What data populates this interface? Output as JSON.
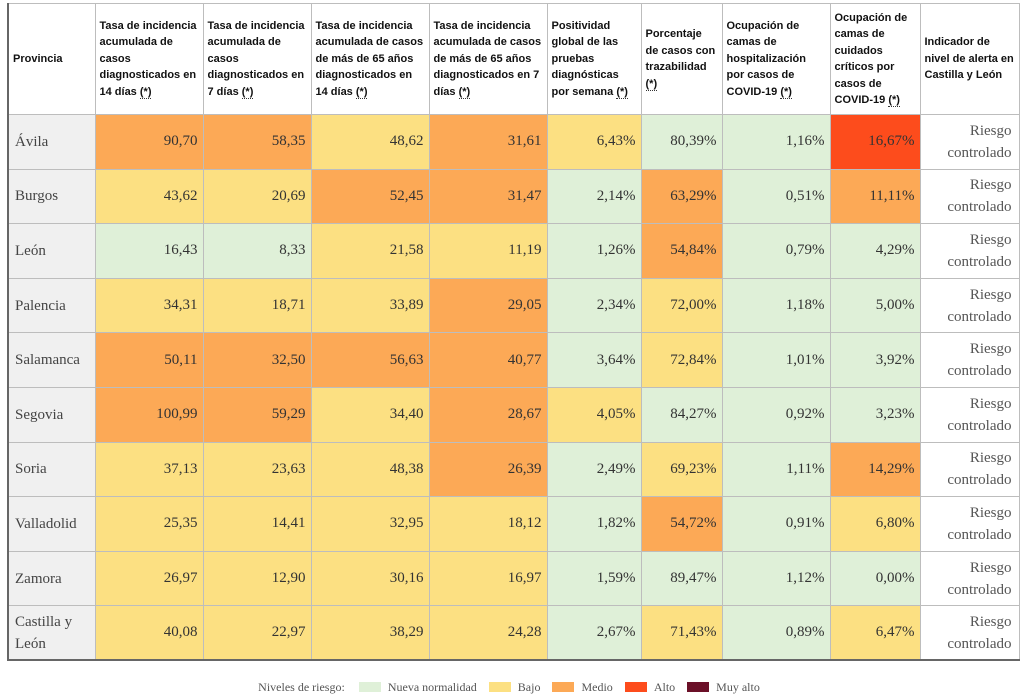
{
  "colors": {
    "nueva": "#dff0d8",
    "bajo": "#fce082",
    "medio": "#fca956",
    "alto": "#fd4c1c",
    "muyalto": "#6b1028"
  },
  "header": {
    "provincia": "Provincia",
    "col1": "Tasa de incidencia acumulada de casos diagnosticados en 14 días",
    "col2": "Tasa de incidencia acumulada de casos diagnosticados en 7 días",
    "col3": "Tasa de incidencia acumulada de casos de más de 65 años diagnosticados en 14 días",
    "col4": "Tasa de incidencia acumulada de casos de más de 65 años diagnosticados en 7 días",
    "col5": "Positividad global de las pruebas diagnósticas por semana",
    "col6": "Porcentaje de casos con trazabilidad",
    "col7": "Ocupación de camas de hospitalización por casos de COVID-19",
    "col8": "Ocupación de camas de cuidados críticos por casos de COVID-19",
    "col9": "Indicador de nivel de alerta en Castilla y León",
    "star": "(*)"
  },
  "rows": [
    {
      "provincia": "Ávila",
      "c1": "90,70",
      "c2": "58,35",
      "c3": "48,62",
      "c4": "31,61",
      "c5": "6,43%",
      "c6": "80,39%",
      "c7": "1,16%",
      "c8": "16,67%",
      "alerta": "Riesgo controlado",
      "lv": [
        "medio",
        "medio",
        "bajo",
        "medio",
        "bajo",
        "nueva",
        "nueva",
        "alto"
      ]
    },
    {
      "provincia": "Burgos",
      "c1": "43,62",
      "c2": "20,69",
      "c3": "52,45",
      "c4": "31,47",
      "c5": "2,14%",
      "c6": "63,29%",
      "c7": "0,51%",
      "c8": "11,11%",
      "alerta": "Riesgo controlado",
      "lv": [
        "bajo",
        "bajo",
        "medio",
        "medio",
        "nueva",
        "medio",
        "nueva",
        "medio"
      ]
    },
    {
      "provincia": "León",
      "c1": "16,43",
      "c2": "8,33",
      "c3": "21,58",
      "c4": "11,19",
      "c5": "1,26%",
      "c6": "54,84%",
      "c7": "0,79%",
      "c8": "4,29%",
      "alerta": "Riesgo controlado",
      "lv": [
        "nueva",
        "nueva",
        "bajo",
        "bajo",
        "nueva",
        "medio",
        "nueva",
        "nueva"
      ]
    },
    {
      "provincia": "Palencia",
      "c1": "34,31",
      "c2": "18,71",
      "c3": "33,89",
      "c4": "29,05",
      "c5": "2,34%",
      "c6": "72,00%",
      "c7": "1,18%",
      "c8": "5,00%",
      "alerta": "Riesgo controlado",
      "lv": [
        "bajo",
        "bajo",
        "bajo",
        "medio",
        "nueva",
        "bajo",
        "nueva",
        "nueva"
      ]
    },
    {
      "provincia": "Salamanca",
      "c1": "50,11",
      "c2": "32,50",
      "c3": "56,63",
      "c4": "40,77",
      "c5": "3,64%",
      "c6": "72,84%",
      "c7": "1,01%",
      "c8": "3,92%",
      "alerta": "Riesgo controlado",
      "lv": [
        "medio",
        "medio",
        "medio",
        "medio",
        "nueva",
        "bajo",
        "nueva",
        "nueva"
      ]
    },
    {
      "provincia": "Segovia",
      "c1": "100,99",
      "c2": "59,29",
      "c3": "34,40",
      "c4": "28,67",
      "c5": "4,05%",
      "c6": "84,27%",
      "c7": "0,92%",
      "c8": "3,23%",
      "alerta": "Riesgo controlado",
      "lv": [
        "medio",
        "medio",
        "bajo",
        "medio",
        "bajo",
        "nueva",
        "nueva",
        "nueva"
      ]
    },
    {
      "provincia": "Soria",
      "c1": "37,13",
      "c2": "23,63",
      "c3": "48,38",
      "c4": "26,39",
      "c5": "2,49%",
      "c6": "69,23%",
      "c7": "1,11%",
      "c8": "14,29%",
      "alerta": "Riesgo controlado",
      "lv": [
        "bajo",
        "bajo",
        "bajo",
        "medio",
        "nueva",
        "bajo",
        "nueva",
        "medio"
      ]
    },
    {
      "provincia": "Valladolid",
      "c1": "25,35",
      "c2": "14,41",
      "c3": "32,95",
      "c4": "18,12",
      "c5": "1,82%",
      "c6": "54,72%",
      "c7": "0,91%",
      "c8": "6,80%",
      "alerta": "Riesgo controlado",
      "lv": [
        "bajo",
        "bajo",
        "bajo",
        "bajo",
        "nueva",
        "medio",
        "nueva",
        "bajo"
      ]
    },
    {
      "provincia": "Zamora",
      "c1": "26,97",
      "c2": "12,90",
      "c3": "30,16",
      "c4": "16,97",
      "c5": "1,59%",
      "c6": "89,47%",
      "c7": "1,12%",
      "c8": "0,00%",
      "alerta": "Riesgo controlado",
      "lv": [
        "bajo",
        "bajo",
        "bajo",
        "bajo",
        "nueva",
        "nueva",
        "nueva",
        "nueva"
      ]
    },
    {
      "provincia": "Castilla y León",
      "c1": "40,08",
      "c2": "22,97",
      "c3": "38,29",
      "c4": "24,28",
      "c5": "2,67%",
      "c6": "71,43%",
      "c7": "0,89%",
      "c8": "6,47%",
      "alerta": "Riesgo controlado",
      "lv": [
        "bajo",
        "bajo",
        "bajo",
        "bajo",
        "nueva",
        "bajo",
        "nueva",
        "bajo"
      ]
    }
  ],
  "legend": {
    "title": "Niveles de riesgo:",
    "items": [
      {
        "key": "nueva",
        "label": "Nueva normalidad"
      },
      {
        "key": "bajo",
        "label": "Bajo"
      },
      {
        "key": "medio",
        "label": "Medio"
      },
      {
        "key": "alto",
        "label": "Alto"
      },
      {
        "key": "muyalto",
        "label": "Muy alto"
      }
    ]
  }
}
